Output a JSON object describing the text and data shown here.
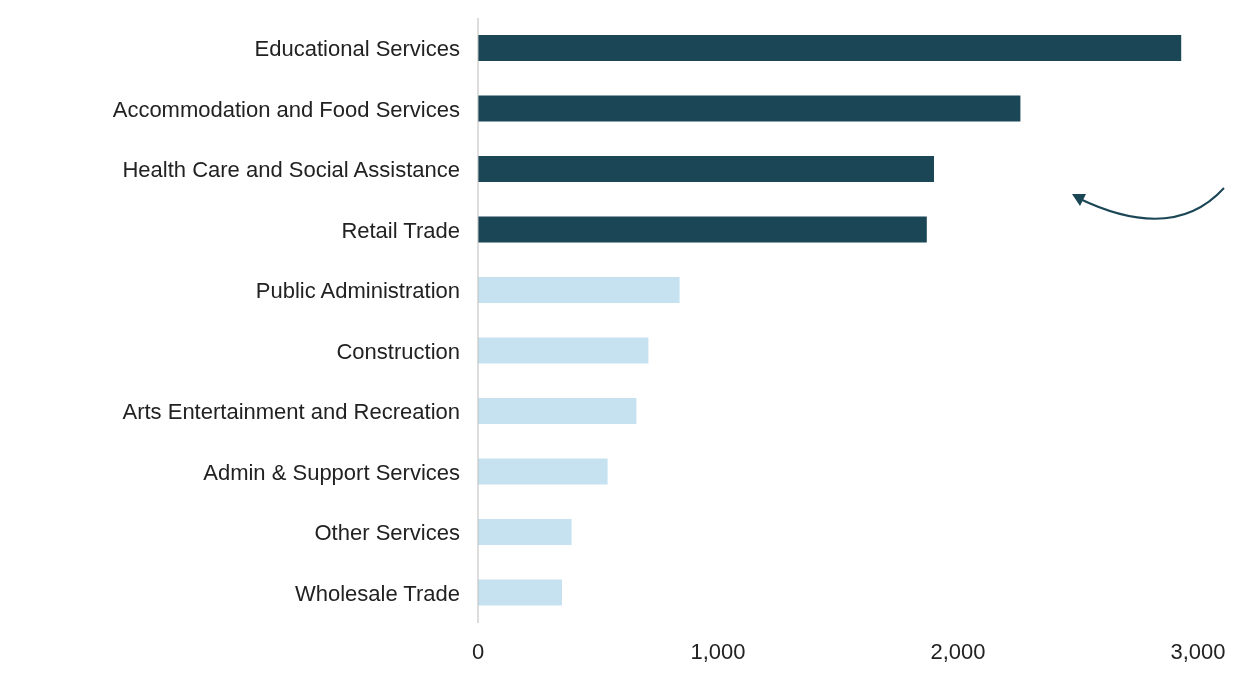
{
  "chart_data": {
    "type": "bar",
    "orientation": "horizontal",
    "categories": [
      "Educational Services",
      "Accommodation and Food Services",
      "Health Care and Social Assistance",
      "Retail Trade",
      "Public Administration",
      "Construction",
      "Arts Entertainment and Recreation",
      "Admin & Support Services",
      "Other Services",
      "Wholesale Trade"
    ],
    "values": [
      2930,
      2260,
      1900,
      1870,
      840,
      710,
      660,
      540,
      390,
      350
    ],
    "colors": [
      "#1b4656",
      "#1b4656",
      "#1b4656",
      "#1b4656",
      "#c6e2f0",
      "#c6e2f0",
      "#c6e2f0",
      "#c6e2f0",
      "#c6e2f0",
      "#c6e2f0"
    ],
    "xlim": [
      0,
      3000
    ],
    "xticks": [
      0,
      {
        "value": 1000,
        "label": "1,000"
      },
      {
        "value": 2000,
        "label": "2,000"
      },
      {
        "value": 3000,
        "label": "3,000"
      }
    ],
    "grid": false,
    "legend": false
  }
}
